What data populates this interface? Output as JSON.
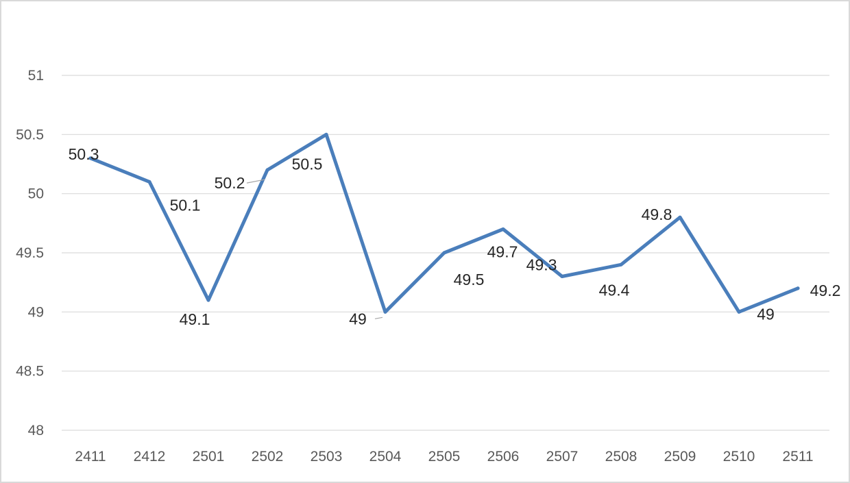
{
  "chart_data": {
    "type": "line",
    "categories": [
      "2411",
      "2412",
      "2501",
      "2502",
      "2503",
      "2504",
      "2505",
      "2506",
      "2507",
      "2508",
      "2509",
      "2510",
      "2511"
    ],
    "series": [
      {
        "values": [
          50.3,
          50.1,
          49.1,
          50.2,
          50.5,
          49,
          49.5,
          49.7,
          49.3,
          49.4,
          49.8,
          49,
          49.2
        ]
      }
    ],
    "data_labels": [
      "50.3",
      "50.1",
      "49.1",
      "50.2",
      "50.5",
      "49",
      "49.5",
      "49.7",
      "49.3",
      "49.4",
      "49.8",
      "49",
      "49.2"
    ],
    "y_ticks": [
      "48",
      "48.5",
      "49",
      "49.5",
      "50",
      "50.5",
      "51"
    ],
    "ylim": [
      48,
      51
    ],
    "grid": true,
    "legend": "none",
    "colors": {
      "line": "#4a7ebb",
      "grid": "#d9d9d9",
      "axis_text": "#595959",
      "label_text": "#262626"
    }
  }
}
